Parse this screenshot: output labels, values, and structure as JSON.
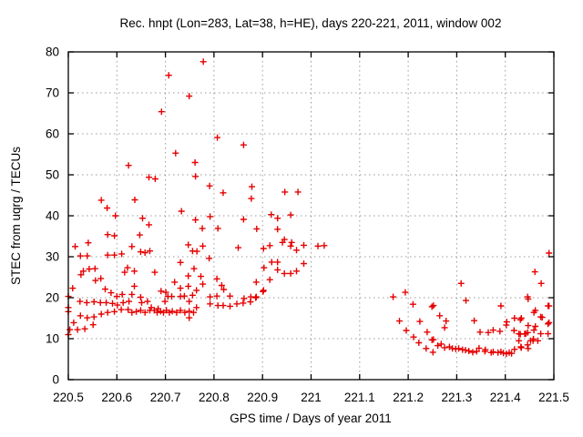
{
  "chart_data": {
    "type": "scatter",
    "title": "Rec. hnpt (Lon=283, Lat=38, h=HE), days 220-221, 2011, window 002",
    "xlabel": "GPS time / Days of year 2011",
    "ylabel": "STEC from uqrg / TECUs",
    "xlim": [
      220.5,
      221.5
    ],
    "ylim": [
      0,
      80
    ],
    "xticks": {
      "values": [
        220.5,
        220.6,
        220.7,
        220.8,
        220.9,
        221.0,
        221.1,
        221.2,
        221.3,
        221.4,
        221.5
      ],
      "labels": [
        "220.5",
        "220.6",
        "220.7",
        "220.8",
        "220.9",
        "221",
        "221.1",
        "221.2",
        "221.3",
        "221.4",
        "221.5"
      ]
    },
    "yticks": {
      "values": [
        0,
        10,
        20,
        30,
        40,
        50,
        60,
        70,
        80
      ],
      "labels": [
        "0",
        "10",
        "20",
        "30",
        "40",
        "50",
        "60",
        "70",
        "80"
      ]
    },
    "grid": true,
    "legend": "none",
    "marker": "plus",
    "marker_color": "#e60000",
    "axis_color": "#000000",
    "grid_color": "#9a9a9a",
    "series": [
      {
        "name": "STEC",
        "points": [
          [
            220.5,
            11.0
          ],
          [
            220.503,
            12.2
          ],
          [
            220.519,
            12.2
          ],
          [
            220.534,
            12.4
          ],
          [
            220.551,
            13.4
          ],
          [
            220.511,
            13.9
          ],
          [
            220.525,
            15.6
          ],
          [
            220.539,
            15.1
          ],
          [
            220.553,
            15.3
          ],
          [
            220.568,
            16.0
          ],
          [
            220.581,
            16.4
          ],
          [
            220.595,
            16.6
          ],
          [
            220.609,
            17.1
          ],
          [
            220.623,
            17.1
          ],
          [
            220.5,
            17.6
          ],
          [
            220.5,
            16.6
          ],
          [
            220.524,
            19.1
          ],
          [
            220.538,
            18.8
          ],
          [
            220.553,
            19.0
          ],
          [
            220.566,
            18.8
          ],
          [
            220.578,
            18.8
          ],
          [
            220.591,
            18.6
          ],
          [
            220.601,
            18.2
          ],
          [
            220.613,
            18.8
          ],
          [
            220.625,
            19.1
          ],
          [
            220.509,
            22.3
          ],
          [
            220.5,
            20.3
          ],
          [
            220.576,
            22.1
          ],
          [
            220.588,
            21.2
          ],
          [
            220.6,
            20.3
          ],
          [
            220.611,
            20.8
          ],
          [
            220.531,
            26.5
          ],
          [
            220.543,
            27.0
          ],
          [
            220.555,
            27.1
          ],
          [
            220.526,
            25.6
          ],
          [
            220.622,
            27.3
          ],
          [
            220.616,
            26.2
          ],
          [
            220.556,
            24.2
          ],
          [
            220.567,
            24.7
          ],
          [
            220.514,
            32.5
          ],
          [
            220.541,
            33.4
          ],
          [
            220.525,
            30.2
          ],
          [
            220.539,
            30.2
          ],
          [
            220.581,
            30.4
          ],
          [
            220.595,
            30.4
          ],
          [
            220.61,
            30.7
          ],
          [
            220.581,
            35.4
          ],
          [
            220.595,
            35.1
          ],
          [
            220.597,
            40.0
          ],
          [
            220.568,
            43.8
          ],
          [
            220.58,
            41.9
          ],
          [
            220.624,
            52.3
          ],
          [
            220.631,
            32.5
          ],
          [
            220.647,
            35.3
          ],
          [
            220.649,
            31.2
          ],
          [
            220.658,
            31.0
          ],
          [
            220.668,
            31.4
          ],
          [
            220.653,
            39.4
          ],
          [
            220.666,
            37.8
          ],
          [
            220.637,
            43.9
          ],
          [
            220.666,
            49.4
          ],
          [
            220.679,
            49.0
          ],
          [
            220.692,
            65.4
          ],
          [
            220.707,
            74.3
          ],
          [
            220.721,
            55.3
          ],
          [
            220.733,
            41.1
          ],
          [
            220.636,
            26.5
          ],
          [
            220.678,
            26.2
          ],
          [
            220.636,
            22.8
          ],
          [
            220.631,
            20.8
          ],
          [
            220.649,
            20.1
          ],
          [
            220.663,
            19.1
          ],
          [
            220.651,
            18.8
          ],
          [
            220.691,
            21.6
          ],
          [
            220.701,
            21.3
          ],
          [
            220.705,
            20.3
          ],
          [
            220.713,
            20.3
          ],
          [
            220.699,
            19.1
          ],
          [
            220.731,
            20.3
          ],
          [
            220.739,
            20.4
          ],
          [
            220.749,
            19.1
          ],
          [
            220.719,
            23.8
          ],
          [
            220.747,
            25.3
          ],
          [
            220.731,
            22.3
          ],
          [
            220.747,
            22.8
          ],
          [
            220.756,
            20.6
          ],
          [
            220.731,
            28.6
          ],
          [
            220.747,
            32.9
          ],
          [
            220.756,
            31.4
          ],
          [
            220.759,
            27.1
          ],
          [
            220.749,
            15.1
          ],
          [
            220.631,
            16.4
          ],
          [
            220.64,
            16.6
          ],
          [
            220.649,
            16.9
          ],
          [
            220.658,
            16.4
          ],
          [
            220.668,
            16.9
          ],
          [
            220.677,
            16.9
          ],
          [
            220.683,
            16.4
          ],
          [
            220.69,
            16.7
          ],
          [
            220.696,
            16.4
          ],
          [
            220.702,
            16.9
          ],
          [
            220.708,
            16.4
          ],
          [
            220.714,
            16.7
          ],
          [
            220.723,
            16.4
          ],
          [
            220.731,
            16.9
          ],
          [
            220.74,
            16.4
          ],
          [
            220.749,
            16.7
          ],
          [
            220.758,
            16.4
          ],
          [
            220.764,
            17.6
          ],
          [
            220.671,
            17.6
          ],
          [
            220.685,
            17.3
          ],
          [
            220.762,
            39.0
          ],
          [
            220.776,
            36.9
          ],
          [
            220.792,
            39.8
          ],
          [
            220.808,
            36.9
          ],
          [
            220.861,
            39.1
          ],
          [
            220.888,
            36.8
          ],
          [
            220.778,
            77.6
          ],
          [
            220.749,
            69.2
          ],
          [
            220.761,
            53.0
          ],
          [
            220.762,
            49.6
          ],
          [
            220.791,
            47.3
          ],
          [
            220.807,
            59.1
          ],
          [
            220.861,
            57.3
          ],
          [
            220.819,
            45.6
          ],
          [
            220.878,
            47.1
          ],
          [
            220.877,
            44.2
          ],
          [
            220.777,
            32.6
          ],
          [
            220.765,
            31.3
          ],
          [
            220.85,
            32.2
          ],
          [
            220.79,
            29.6
          ],
          [
            220.773,
            25.2
          ],
          [
            220.777,
            23.3
          ],
          [
            220.764,
            21.8
          ],
          [
            220.806,
            24.6
          ],
          [
            220.816,
            23.0
          ],
          [
            220.82,
            22.0
          ],
          [
            220.833,
            20.4
          ],
          [
            220.792,
            20.2
          ],
          [
            220.806,
            20.4
          ],
          [
            220.792,
            18.5
          ],
          [
            220.808,
            18.1
          ],
          [
            220.819,
            18.1
          ],
          [
            220.833,
            17.9
          ],
          [
            220.847,
            18.5
          ],
          [
            220.86,
            18.7
          ],
          [
            220.875,
            19.0
          ],
          [
            220.862,
            19.8
          ],
          [
            220.876,
            20.2
          ],
          [
            220.886,
            20.0
          ],
          [
            220.931,
            36.7
          ],
          [
            220.931,
            39.4
          ],
          [
            220.958,
            40.2
          ],
          [
            220.918,
            40.3
          ],
          [
            220.945,
            34.2
          ],
          [
            220.941,
            33.5
          ],
          [
            220.902,
            32.0
          ],
          [
            220.915,
            32.7
          ],
          [
            220.958,
            32.6
          ],
          [
            220.97,
            31.6
          ],
          [
            220.985,
            32.8
          ],
          [
            220.96,
            33.5
          ],
          [
            221.014,
            32.6
          ],
          [
            221.027,
            32.7
          ],
          [
            220.903,
            27.3
          ],
          [
            220.919,
            28.7
          ],
          [
            220.931,
            28.7
          ],
          [
            220.931,
            26.8
          ],
          [
            220.945,
            25.9
          ],
          [
            220.958,
            25.9
          ],
          [
            220.97,
            26.5
          ],
          [
            220.985,
            28.3
          ],
          [
            220.887,
            23.8
          ],
          [
            220.915,
            24.4
          ],
          [
            220.902,
            21.8
          ],
          [
            220.887,
            20.2
          ],
          [
            220.901,
            21.5
          ],
          [
            220.946,
            45.8
          ],
          [
            220.973,
            45.8
          ],
          [
            221.169,
            20.2
          ],
          [
            221.194,
            21.3
          ],
          [
            221.21,
            18.4
          ],
          [
            221.249,
            17.8
          ],
          [
            221.182,
            14.3
          ],
          [
            221.196,
            12.0
          ],
          [
            221.224,
            14.2
          ],
          [
            221.211,
            10.4
          ],
          [
            221.239,
            11.6
          ],
          [
            221.222,
            9.0
          ],
          [
            221.237,
            7.6
          ],
          [
            221.249,
            9.7
          ],
          [
            221.251,
            6.7
          ],
          [
            221.309,
            23.5
          ],
          [
            221.319,
            19.3
          ],
          [
            221.336,
            14.4
          ],
          [
            221.278,
            14.3
          ],
          [
            221.275,
            12.7
          ],
          [
            221.252,
            18.1
          ],
          [
            221.265,
            15.6
          ],
          [
            221.391,
            18.0
          ],
          [
            221.403,
            14.1
          ],
          [
            221.419,
            15.0
          ],
          [
            221.431,
            14.6
          ],
          [
            221.348,
            11.6
          ],
          [
            221.365,
            11.5
          ],
          [
            221.375,
            12.1
          ],
          [
            221.389,
            11.8
          ],
          [
            221.402,
            13.3
          ],
          [
            221.418,
            12.0
          ],
          [
            221.431,
            11.1
          ],
          [
            221.446,
            11.5
          ],
          [
            221.459,
            12.1
          ],
          [
            221.446,
            20.2
          ],
          [
            221.459,
            16.4
          ],
          [
            221.476,
            15.2
          ],
          [
            221.49,
            13.9
          ],
          [
            221.49,
            18.0
          ],
          [
            221.461,
            26.3
          ],
          [
            221.474,
            23.5
          ],
          [
            221.49,
            30.9
          ],
          [
            221.252,
            9.8
          ],
          [
            221.261,
            8.3
          ],
          [
            221.275,
            7.8
          ],
          [
            221.291,
            7.6
          ],
          [
            221.304,
            7.6
          ],
          [
            221.318,
            7.2
          ],
          [
            221.333,
            6.7
          ],
          [
            221.346,
            7.7
          ],
          [
            221.359,
            7.3
          ],
          [
            221.375,
            6.8
          ],
          [
            221.391,
            6.8
          ],
          [
            221.402,
            6.3
          ],
          [
            221.419,
            7.4
          ],
          [
            221.432,
            8.0
          ],
          [
            221.446,
            8.5
          ],
          [
            221.458,
            9.9
          ],
          [
            221.428,
            11.2
          ],
          [
            221.442,
            11.2
          ],
          [
            221.44,
            11.2
          ],
          [
            221.457,
            9.5
          ],
          [
            221.473,
            11.2
          ],
          [
            221.488,
            11.2
          ],
          [
            221.428,
            9.5
          ],
          [
            221.433,
            7.8
          ],
          [
            221.447,
            7.6
          ],
          [
            221.452,
            9.5
          ],
          [
            221.467,
            9.5
          ],
          [
            221.473,
            15.3
          ],
          [
            221.488,
            13.6
          ],
          [
            221.433,
            15.0
          ],
          [
            221.447,
            13.2
          ],
          [
            221.462,
            13.0
          ],
          [
            221.462,
            16.9
          ],
          [
            221.488,
            18.0
          ],
          [
            221.447,
            19.7
          ],
          [
            221.396,
            6.5
          ],
          [
            221.408,
            6.6
          ],
          [
            221.413,
            6.4
          ],
          [
            221.385,
            6.6
          ],
          [
            221.371,
            6.6
          ],
          [
            221.358,
            6.9
          ],
          [
            221.341,
            6.9
          ],
          [
            221.325,
            7.0
          ],
          [
            221.312,
            7.3
          ],
          [
            221.298,
            7.5
          ],
          [
            221.285,
            8.0
          ],
          [
            221.268,
            8.7
          ]
        ]
      }
    ]
  }
}
